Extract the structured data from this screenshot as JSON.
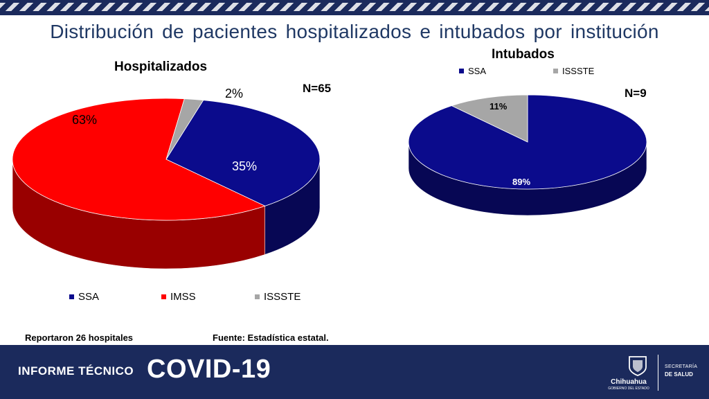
{
  "page_title": "Distribución de pacientes hospitalizados e intubados por institución",
  "chart_data": [
    {
      "type": "pie",
      "title": "Hospitalizados",
      "n_label": "N=65",
      "categories": [
        "SSA",
        "IMSS",
        "ISSSTE"
      ],
      "values": [
        35,
        63,
        2
      ],
      "labels": [
        "35%",
        "63%",
        "2%"
      ],
      "colors": [
        "#0b0b8c",
        "#ff0000",
        "#a6a6a6"
      ],
      "legend_position": "bottom"
    },
    {
      "type": "pie",
      "title": "Intubados",
      "n_label": "N=9",
      "categories": [
        "SSA",
        "ISSSTE"
      ],
      "values": [
        89,
        11
      ],
      "labels": [
        "89%",
        "11%"
      ],
      "colors": [
        "#0b0b8c",
        "#a6a6a6"
      ],
      "legend_position": "top"
    }
  ],
  "footnotes": {
    "left": "Reportaron 26 hospitales",
    "right": "Fuente: Estadística estatal."
  },
  "footer": {
    "report_label": "INFORME TÉCNICO",
    "covid_label": "COVID-19",
    "logo_name": "Chihuahua",
    "logo_sub": "GOBIERNO DEL ESTADO",
    "secretaria_line1": "SECRETARÍA",
    "secretaria_line2": "DE SALUD",
    "background_color": "#1b2a5c"
  }
}
